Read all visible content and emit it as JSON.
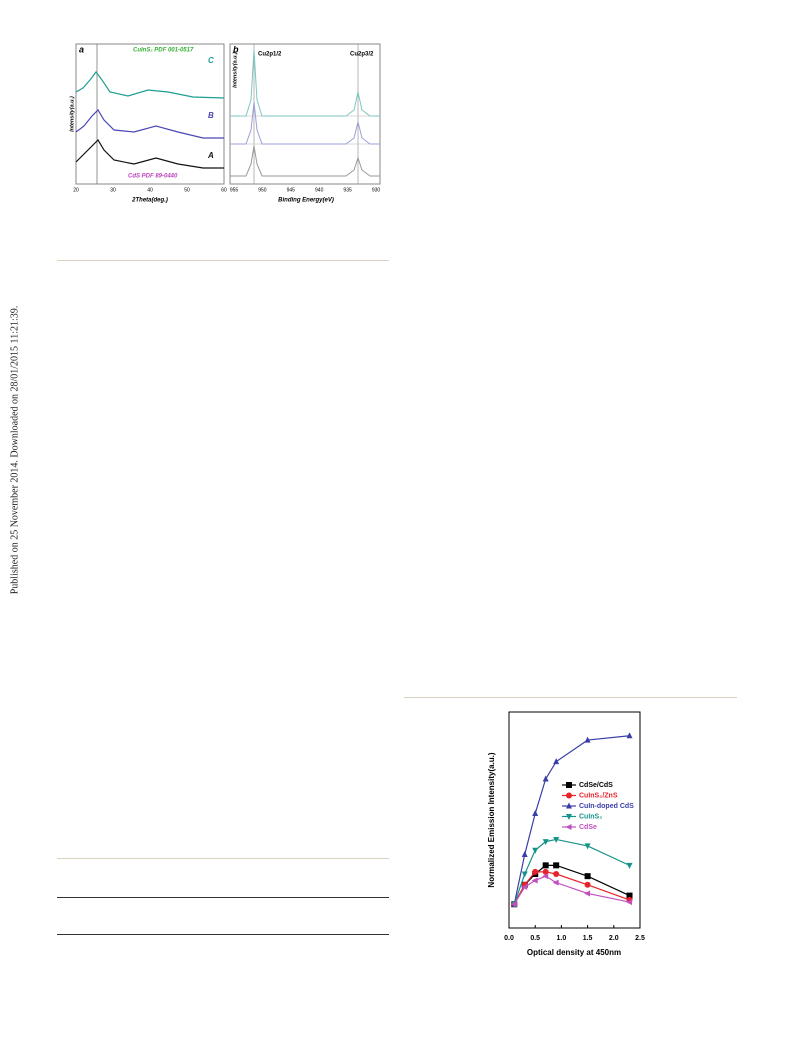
{
  "sidebar": "Published on 25 November 2014. Downloaded on 28/01/2015 11:21:39.",
  "figure_top": {
    "panel_a": {
      "label": "a",
      "ref_top": "CuInS₂ PDF 001-0517",
      "curve_c": "C",
      "curve_b": "B",
      "curve_a": "A",
      "ref_bottom": "CdS PDF 89-0440",
      "y_label": "Intensity(a.u.)",
      "x_label": "2Theta(deg.)",
      "ticks": [
        "20",
        "30",
        "40",
        "50",
        "60"
      ]
    },
    "panel_b": {
      "label": "b",
      "peak_1": "Cu2p1/2",
      "peak_2": "Cu2p3/2",
      "y_label": "Intensity(a.u.)",
      "x_label": "Binding Energy(eV)",
      "ticks": [
        "955",
        "950",
        "945",
        "940",
        "935",
        "930"
      ]
    }
  },
  "chart_data": {
    "type": "line",
    "x_label": "Optical density at 450nm",
    "y_label": "Normalized Emission Intensity(a.u.)",
    "x": [
      0.1,
      0.3,
      0.5,
      0.7,
      0.9,
      1.5,
      2.3
    ],
    "xlim": [
      0,
      2.5
    ],
    "xticks": [
      {
        "value": 0,
        "label": "0.0"
      },
      0.5,
      {
        "value": 1,
        "label": "1.0"
      },
      1.5,
      {
        "value": 2,
        "label": "2.0"
      },
      2.5
    ],
    "ylim": [
      0,
      1
    ],
    "series": [
      {
        "name": "CdSe/CdS",
        "color": "#000000",
        "marker": "square",
        "values": [
          0.11,
          0.2,
          0.25,
          0.29,
          0.29,
          0.24,
          0.15
        ]
      },
      {
        "name": "CuInS₂/ZnS",
        "color": "#e8222a",
        "marker": "circle",
        "values": [
          0.11,
          0.2,
          0.26,
          0.26,
          0.25,
          0.2,
          0.13
        ]
      },
      {
        "name": "CuIn-doped CdS",
        "color": "#3a3fa8",
        "marker": "triangle-up",
        "values": [
          0.11,
          0.34,
          0.53,
          0.69,
          0.77,
          0.87,
          0.89
        ]
      },
      {
        "name": "CuInS₂",
        "color": "#17948a",
        "marker": "triangle-down",
        "values": [
          0.11,
          0.25,
          0.36,
          0.4,
          0.41,
          0.38,
          0.29
        ]
      },
      {
        "name": "CdSe",
        "color": "#c14fc0",
        "marker": "triangle-left",
        "values": [
          0.11,
          0.19,
          0.22,
          0.24,
          0.21,
          0.16,
          0.12
        ]
      }
    ]
  }
}
